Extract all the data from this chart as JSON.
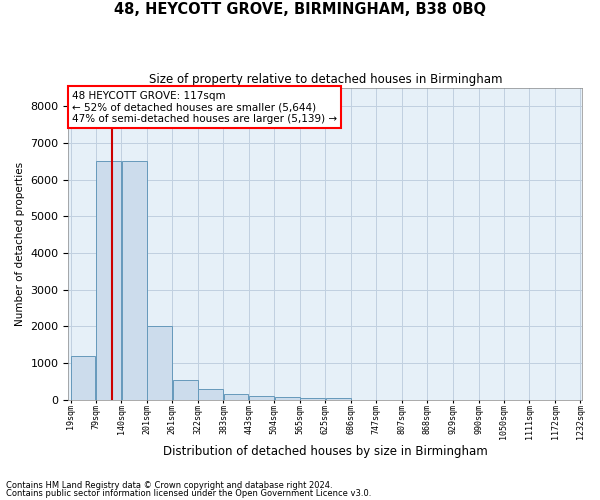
{
  "title": "48, HEYCOTT GROVE, BIRMINGHAM, B38 0BQ",
  "subtitle": "Size of property relative to detached houses in Birmingham",
  "xlabel": "Distribution of detached houses by size in Birmingham",
  "ylabel": "Number of detached properties",
  "footnote1": "Contains HM Land Registry data © Crown copyright and database right 2024.",
  "footnote2": "Contains public sector information licensed under the Open Government Licence v3.0.",
  "annotation_line1": "48 HEYCOTT GROVE: 117sqm",
  "annotation_line2": "← 52% of detached houses are smaller (5,644)",
  "annotation_line3": "47% of semi-detached houses are larger (5,139) →",
  "property_size_sqm": 117,
  "bin_edges": [
    19,
    79,
    140,
    201,
    261,
    322,
    383,
    443,
    504,
    565,
    625,
    686,
    747,
    807,
    868,
    929,
    990,
    1050,
    1111,
    1172,
    1232
  ],
  "bar_heights": [
    1200,
    6500,
    6500,
    2000,
    550,
    290,
    150,
    100,
    70,
    50,
    55,
    0,
    0,
    0,
    0,
    0,
    0,
    0,
    0,
    0
  ],
  "bar_color": "#ccdcec",
  "bar_edge_color": "#6699bb",
  "marker_color": "#cc0000",
  "ylim": [
    0,
    8500
  ],
  "yticks": [
    0,
    1000,
    2000,
    3000,
    4000,
    5000,
    6000,
    7000,
    8000
  ],
  "grid_color": "#c0d0e0",
  "axes_bg_color": "#e6f0f8",
  "fig_bg_color": "#ffffff"
}
